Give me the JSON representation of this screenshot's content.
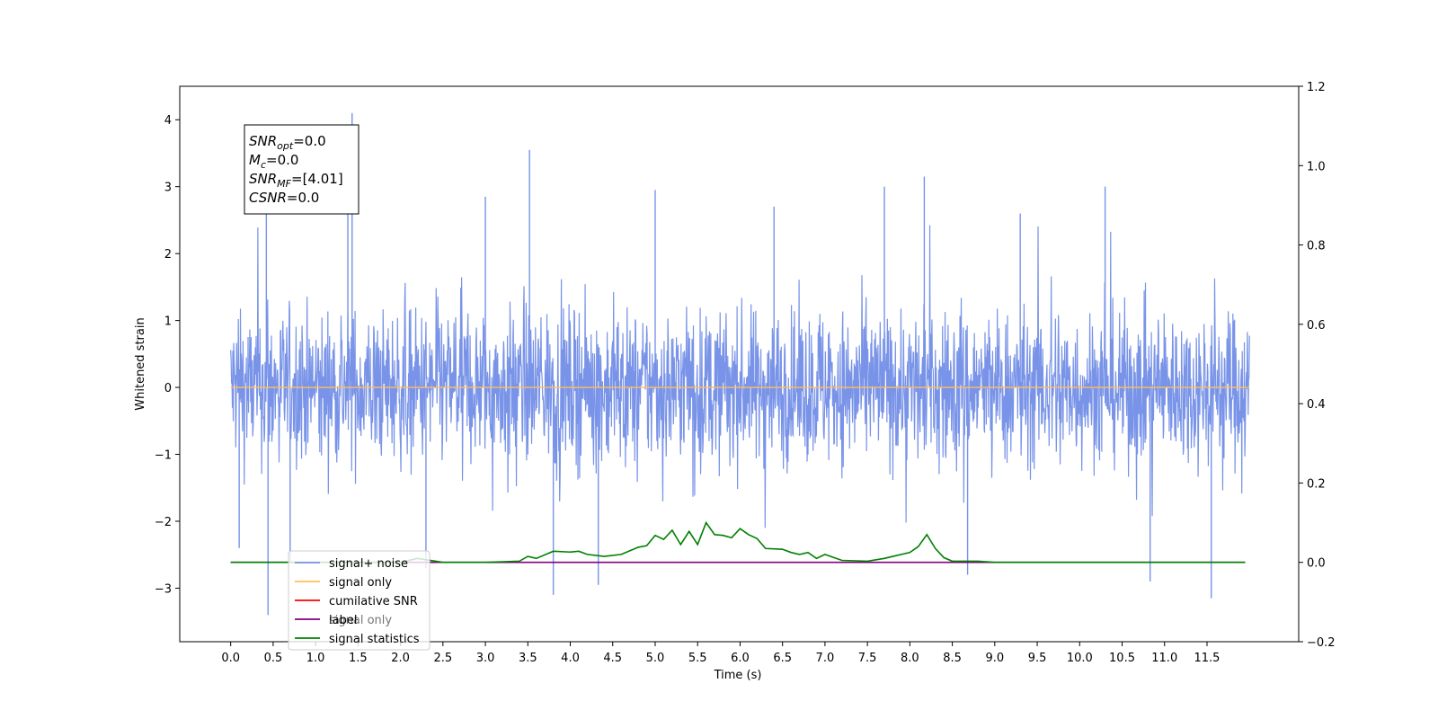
{
  "chart_data": {
    "type": "line",
    "title": "",
    "xlabel": "Time (s)",
    "ylabel": "Whitened strain",
    "xlim": [
      -0.6,
      12.58
    ],
    "ylim": [
      -3.8,
      4.5
    ],
    "y2lim": [
      -0.2,
      1.2
    ],
    "x_ticks": [
      "0.0",
      "0.5",
      "1.0",
      "1.5",
      "2.0",
      "2.5",
      "3.0",
      "3.5",
      "4.0",
      "4.5",
      "5.0",
      "5.5",
      "6.0",
      "6.5",
      "7.0",
      "7.5",
      "8.0",
      "8.5",
      "9.0",
      "9.5",
      "10.0",
      "10.5",
      "11.0",
      "11.5"
    ],
    "y_ticks": [
      "−3",
      "−2",
      "−1",
      "0",
      "1",
      "2",
      "3",
      "4"
    ],
    "y2_ticks": [
      "−0.2",
      "0.0",
      "0.2",
      "0.4",
      "0.6",
      "0.8",
      "1.0",
      "1.2"
    ],
    "legend_position": "lower-left",
    "grid": false,
    "noise": {
      "x_range": [
        0.0,
        12.0
      ],
      "band": [
        -1.0,
        1.0
      ],
      "spikes": [
        {
          "x": 0.42,
          "y": 2.9
        },
        {
          "x": 0.44,
          "y": -3.4
        },
        {
          "x": 1.43,
          "y": 4.1
        },
        {
          "x": 1.38,
          "y": 3.5
        },
        {
          "x": 3.52,
          "y": 3.55
        },
        {
          "x": 3.8,
          "y": -3.1
        },
        {
          "x": 4.33,
          "y": -2.95
        },
        {
          "x": 5.0,
          "y": 2.95
        },
        {
          "x": 7.7,
          "y": 3.0
        },
        {
          "x": 8.17,
          "y": 3.15
        },
        {
          "x": 8.68,
          "y": -2.8
        },
        {
          "x": 10.3,
          "y": 3.0
        },
        {
          "x": 10.83,
          "y": -2.9
        },
        {
          "x": 11.55,
          "y": -3.15
        },
        {
          "x": 3.0,
          "y": 2.85
        },
        {
          "x": 6.4,
          "y": 2.7
        },
        {
          "x": 9.3,
          "y": 2.6
        },
        {
          "x": 2.3,
          "y": -2.7
        },
        {
          "x": 0.1,
          "y": -2.4
        },
        {
          "x": 0.7,
          "y": -2.6
        }
      ]
    },
    "series": [
      {
        "name": "signal+ noise",
        "color": "#7893e8",
        "kind": "noise"
      },
      {
        "name": "signal only",
        "color": "#ffbe5c",
        "kind": "flat",
        "y": 0.0
      },
      {
        "name": "cumilative SNR",
        "color": "#ff0000",
        "kind": "none"
      },
      {
        "name": "label",
        "color": "#800080",
        "kind": "flat2",
        "y2": 0.0,
        "x_range": [
          0.0,
          11.95
        ]
      },
      {
        "name": "signal statistics",
        "color": "#008000",
        "kind": "curve",
        "axis": "right",
        "x": [
          0.0,
          0.5,
          1.0,
          1.5,
          2.0,
          2.2,
          2.5,
          3.0,
          3.4,
          3.5,
          3.6,
          3.8,
          4.0,
          4.1,
          4.2,
          4.4,
          4.6,
          4.8,
          4.9,
          5.0,
          5.1,
          5.2,
          5.3,
          5.4,
          5.5,
          5.6,
          5.7,
          5.8,
          5.9,
          6.0,
          6.1,
          6.2,
          6.3,
          6.5,
          6.6,
          6.7,
          6.8,
          6.9,
          7.0,
          7.2,
          7.5,
          7.7,
          7.8,
          7.9,
          8.0,
          8.1,
          8.2,
          8.3,
          8.4,
          8.5,
          8.8,
          9.0,
          9.5,
          10.0,
          11.95
        ],
        "y": [
          0.0,
          0.0,
          0.0,
          0.0,
          0.0,
          0.01,
          0.0,
          0.0,
          0.003,
          0.015,
          0.01,
          0.028,
          0.026,
          0.028,
          0.02,
          0.015,
          0.02,
          0.038,
          0.042,
          0.068,
          0.058,
          0.081,
          0.045,
          0.078,
          0.045,
          0.1,
          0.07,
          0.068,
          0.062,
          0.085,
          0.07,
          0.06,
          0.035,
          0.033,
          0.025,
          0.02,
          0.025,
          0.01,
          0.02,
          0.005,
          0.003,
          0.01,
          0.015,
          0.02,
          0.025,
          0.04,
          0.07,
          0.035,
          0.012,
          0.003,
          0.003,
          0.0,
          0.0,
          0.0,
          0.0
        ]
      }
    ],
    "annotations": [
      {
        "base": "SNR",
        "sub": "opt",
        "value": "=0.0"
      },
      {
        "base": "M",
        "sub": "c",
        "value": "=0.0"
      },
      {
        "base": "SNR",
        "sub": "MF",
        "value": "=[4.01]"
      },
      {
        "base": "CSNR",
        "sub": "",
        "value": "=0.0"
      }
    ],
    "legend_hidden_text": "signal only"
  }
}
